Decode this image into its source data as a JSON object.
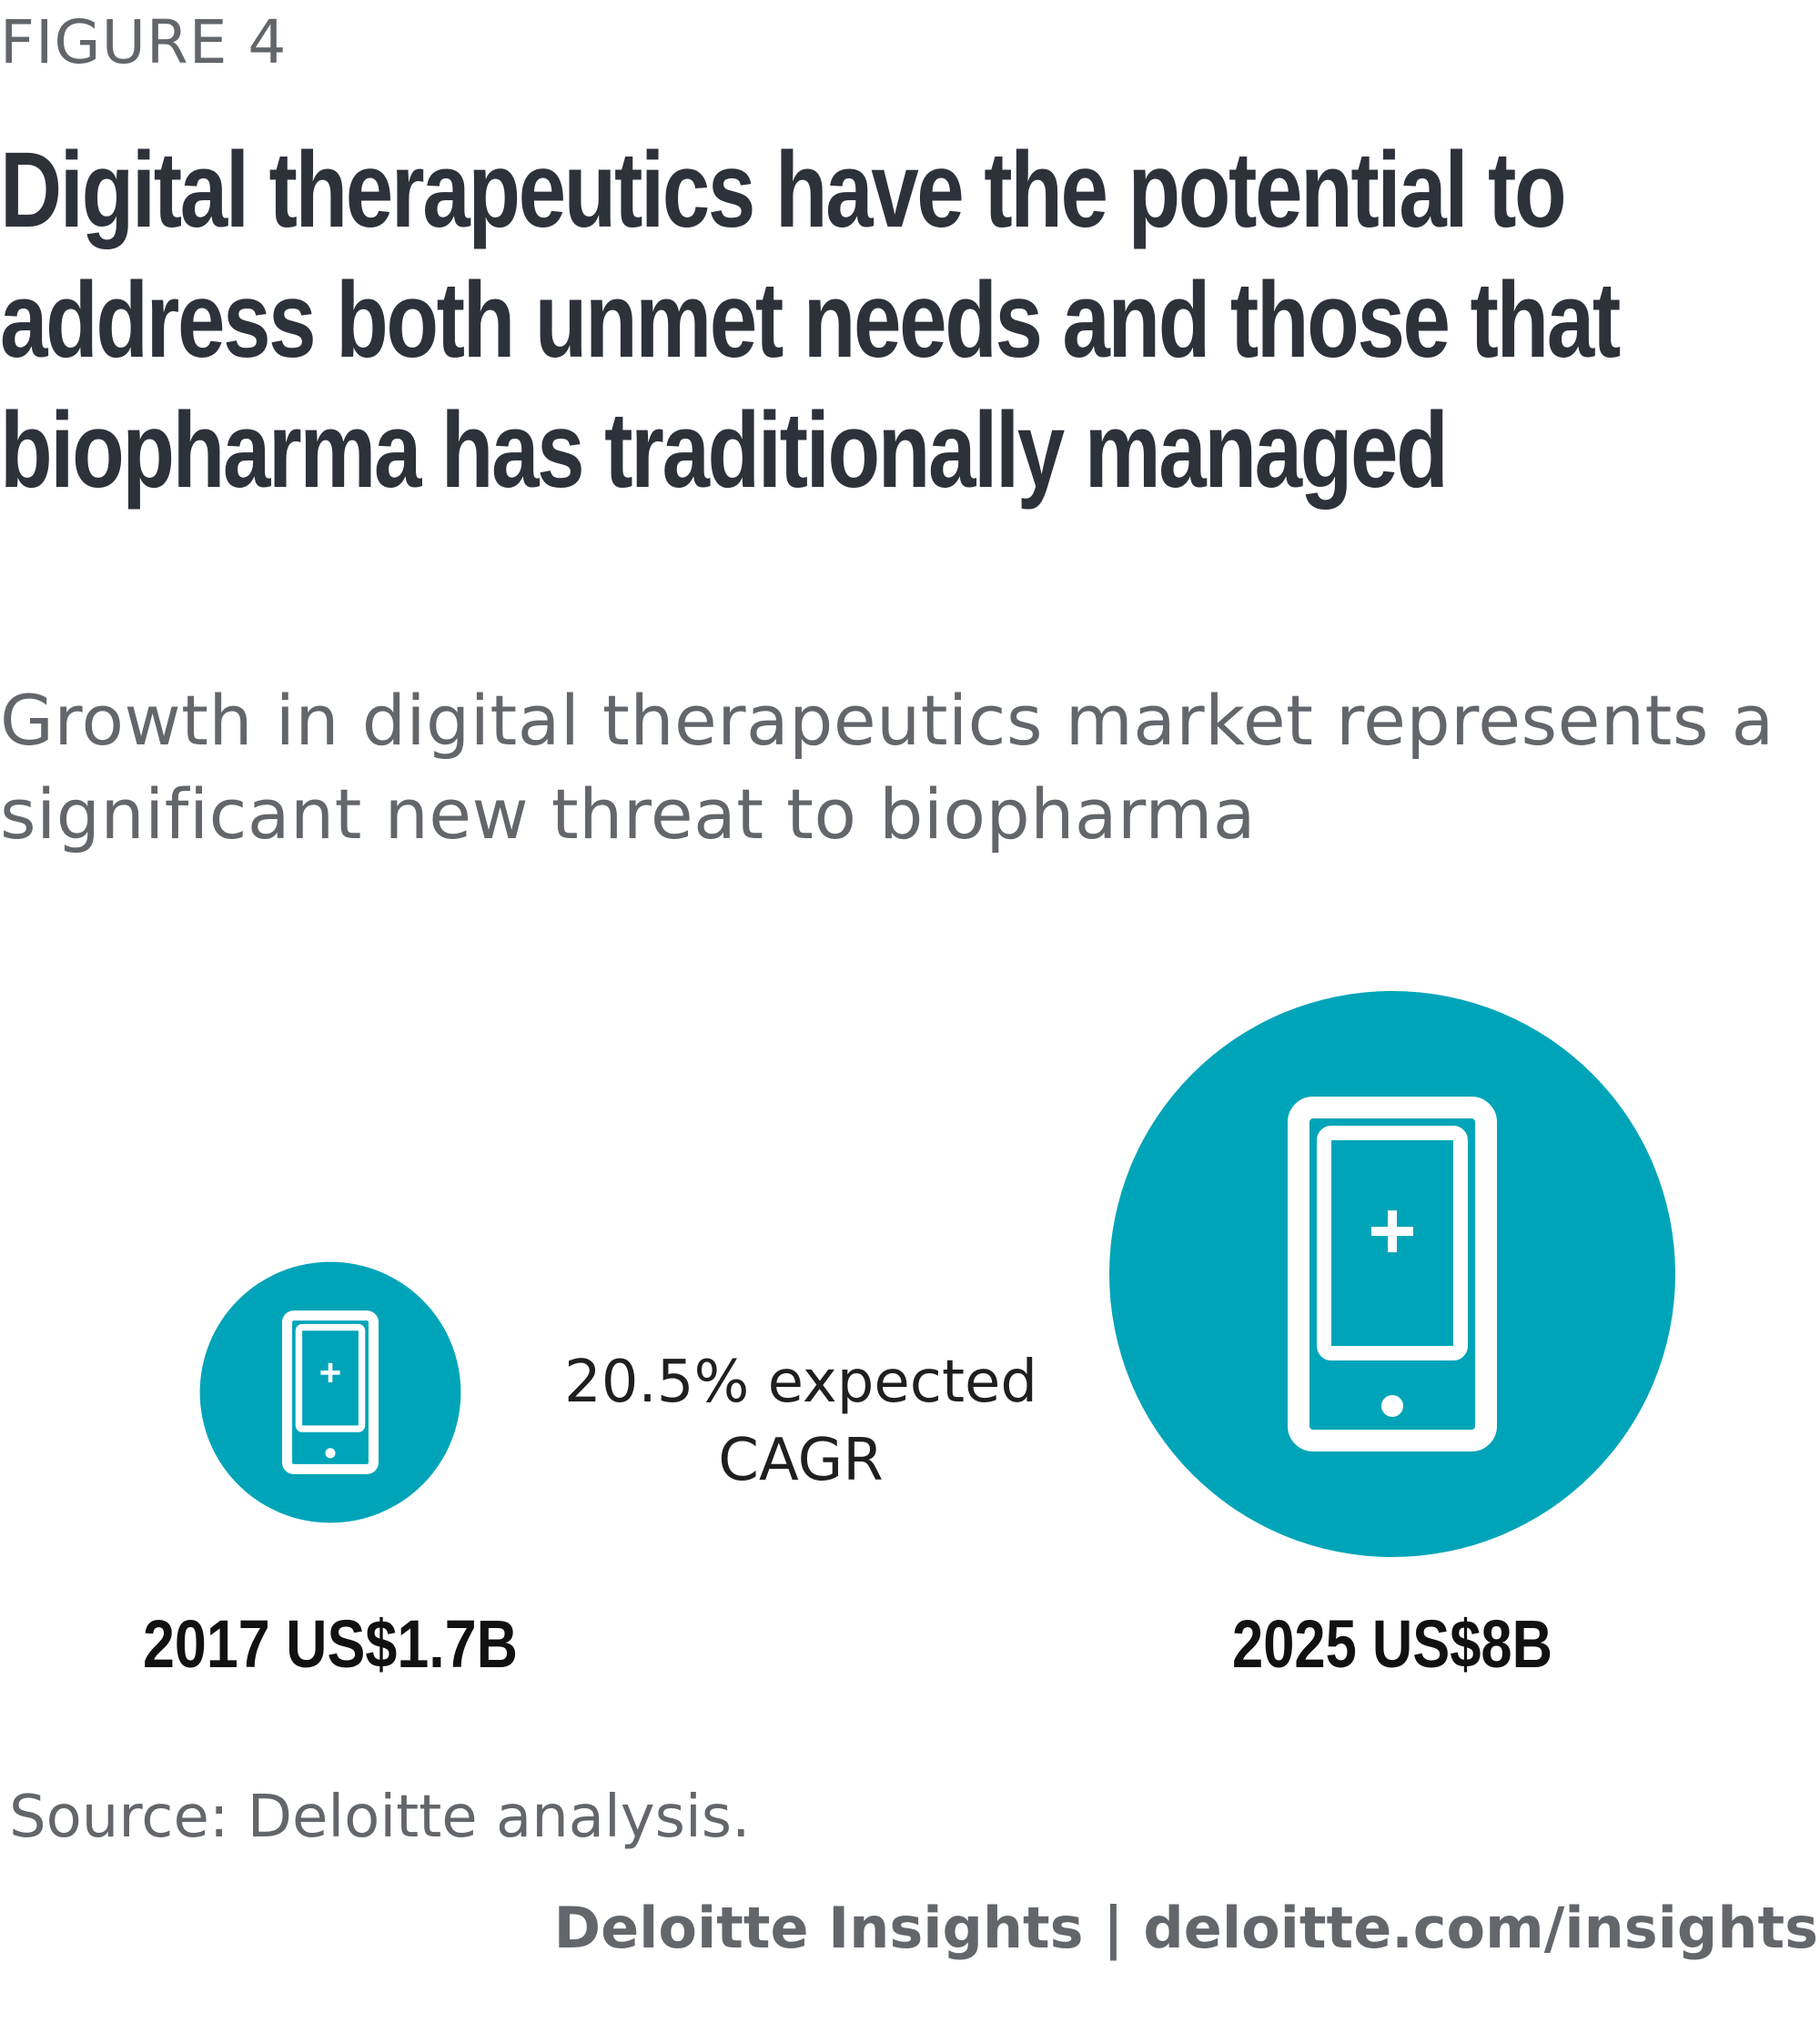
{
  "figure_label": "FIGURE 4",
  "title": "Digital therapeutics have the potential to address both unmet needs and those that biopharma has traditionally managed",
  "subtitle": "Growth in digital therapeutics market represents a significant new threat to biopharma",
  "colors": {
    "circle": "#00a4b8",
    "icon": "#ffffff",
    "title": "#2d313a",
    "muted": "#63666a"
  },
  "icons": {
    "small": "mobile-medical-icon",
    "large": "mobile-medical-icon"
  },
  "chart_data": {
    "type": "bubble",
    "points": [
      {
        "year": "2017",
        "value": 1.7,
        "label": "2017 US$1.7B"
      },
      {
        "year": "2025",
        "value": 8,
        "label": "2025 US$8B"
      }
    ],
    "unit": "US$ billions",
    "annotation": "20.5% expected CAGR"
  },
  "source": "Source: Deloitte analysis.",
  "footer": "Deloitte Insights | deloitte.com/insights"
}
